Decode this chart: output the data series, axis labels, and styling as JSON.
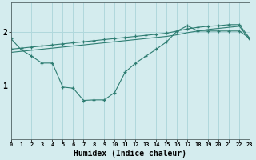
{
  "xlabel": "Humidex (Indice chaleur)",
  "bg_color": "#d4ecee",
  "grid_color": "#b0d8dc",
  "line_color": "#2e7d72",
  "xlim": [
    0,
    23
  ],
  "ylim": [
    0.0,
    2.55
  ],
  "yticks": [
    1,
    2
  ],
  "xticks": [
    0,
    1,
    2,
    3,
    4,
    5,
    6,
    7,
    8,
    9,
    10,
    11,
    12,
    13,
    14,
    15,
    16,
    17,
    18,
    19,
    20,
    21,
    22,
    23
  ],
  "s1_x": [
    0,
    1,
    2,
    3,
    4,
    5,
    6,
    7,
    8,
    9,
    10,
    11,
    12,
    13,
    14,
    15,
    16,
    17,
    18,
    19,
    20,
    21,
    22,
    23
  ],
  "s1_y": [
    1.88,
    1.67,
    1.55,
    1.42,
    1.42,
    0.97,
    0.95,
    0.72,
    0.73,
    0.73,
    0.87,
    1.25,
    1.42,
    1.55,
    1.68,
    1.82,
    2.02,
    2.12,
    2.02,
    2.02,
    2.02,
    2.02,
    2.02,
    1.88
  ],
  "s2_x": [
    0,
    1,
    2,
    3,
    4,
    5,
    6,
    7,
    8,
    9,
    10,
    11,
    12,
    13,
    14,
    15,
    16,
    17,
    18,
    19,
    20,
    21,
    22,
    23
  ],
  "s2_y": [
    1.68,
    1.7,
    1.72,
    1.74,
    1.76,
    1.78,
    1.8,
    1.82,
    1.84,
    1.86,
    1.88,
    1.9,
    1.92,
    1.94,
    1.96,
    1.98,
    2.02,
    2.06,
    2.09,
    2.11,
    2.12,
    2.14,
    2.14,
    1.88
  ],
  "s3_x": [
    0,
    1,
    2,
    3,
    4,
    5,
    6,
    7,
    8,
    9,
    10,
    11,
    12,
    13,
    14,
    15,
    16,
    17,
    18,
    19,
    20,
    21,
    22,
    23
  ],
  "s3_y": [
    1.62,
    1.64,
    1.66,
    1.68,
    1.7,
    1.72,
    1.74,
    1.76,
    1.78,
    1.8,
    1.82,
    1.84,
    1.86,
    1.88,
    1.9,
    1.92,
    1.95,
    1.99,
    2.02,
    2.05,
    2.07,
    2.09,
    2.11,
    1.85
  ]
}
